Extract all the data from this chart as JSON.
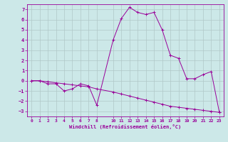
{
  "xlabel": "Windchill (Refroidissement éolien,°C)",
  "background_color": "#cce8e8",
  "grid_color": "#b0c8c8",
  "line_color": "#990099",
  "xlim": [
    -0.5,
    23.5
  ],
  "ylim": [
    -3.5,
    7.5
  ],
  "xticks": [
    0,
    1,
    2,
    3,
    4,
    5,
    6,
    7,
    8,
    10,
    11,
    12,
    13,
    14,
    15,
    16,
    17,
    18,
    19,
    20,
    21,
    22,
    23
  ],
  "yticks": [
    -3,
    -2,
    -1,
    0,
    1,
    2,
    3,
    4,
    5,
    6,
    7
  ],
  "series1_x": [
    0,
    1,
    2,
    3,
    4,
    5,
    6,
    7,
    8,
    10,
    11,
    12,
    13,
    14,
    15,
    16,
    17,
    18,
    19,
    20,
    21,
    22,
    23
  ],
  "series1_y": [
    0.0,
    0.0,
    -0.3,
    -0.3,
    -1.0,
    -0.8,
    -0.3,
    -0.5,
    -2.4,
    4.0,
    6.1,
    7.2,
    6.7,
    6.5,
    6.7,
    5.0,
    2.5,
    2.2,
    0.2,
    0.2,
    0.6,
    0.9,
    -3.1
  ],
  "series2_x": [
    0,
    1,
    2,
    3,
    4,
    5,
    6,
    7,
    8,
    10,
    11,
    12,
    13,
    14,
    15,
    16,
    17,
    18,
    19,
    20,
    21,
    22,
    23
  ],
  "series2_y": [
    0.0,
    0.0,
    -0.1,
    -0.2,
    -0.3,
    -0.4,
    -0.5,
    -0.6,
    -0.8,
    -1.1,
    -1.3,
    -1.5,
    -1.7,
    -1.9,
    -2.1,
    -2.3,
    -2.5,
    -2.6,
    -2.7,
    -2.8,
    -2.9,
    -3.0,
    -3.1
  ]
}
